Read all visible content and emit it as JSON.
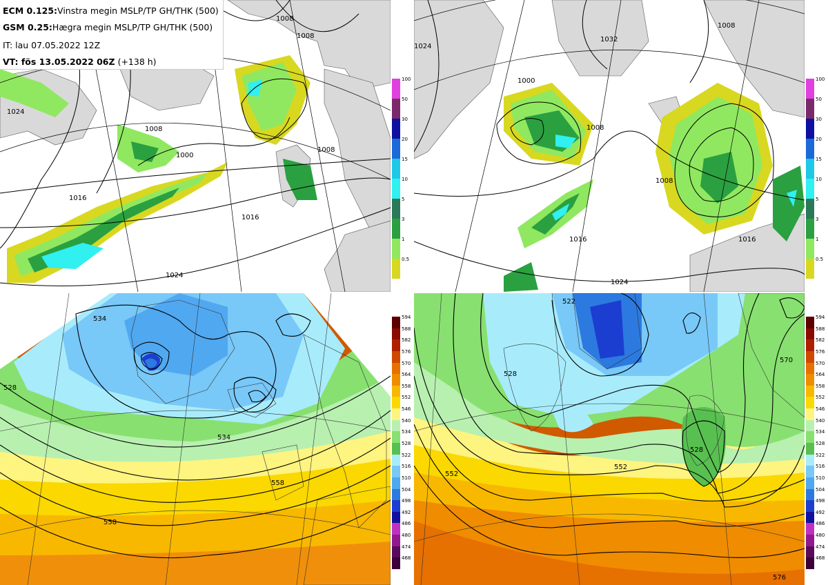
{
  "legend": {
    "ecm_model": "ECM 0.125:",
    "ecm_desc": "Vinstra megin MSLP/TP GH/THK (500)",
    "gsm_model": "GSM 0.25:",
    "gsm_desc": "Hægra megin MSLP/TP GH/THK (500)",
    "it_text": "IT: lau 07.05.2022 12Z",
    "vt_label": "VT: fös 13.05.2022 06Z",
    "vt_lead": "(+138 h)"
  },
  "precip_scale": {
    "labels": [
      "100",
      "50",
      "30",
      "20",
      "15",
      "10",
      "5",
      "3",
      "1",
      "0.5"
    ],
    "colors": [
      "#e040e0",
      "#7a2a6a",
      "#1010a0",
      "#1c6ad8",
      "#20c8e8",
      "#30f0f0",
      "#2a7a5a",
      "#2aa040",
      "#90e860",
      "#d8d820"
    ]
  },
  "thickness_scale": {
    "labels": [
      "594",
      "588",
      "582",
      "576",
      "570",
      "564",
      "558",
      "552",
      "546",
      "540",
      "534",
      "528",
      "522",
      "516",
      "510",
      "504",
      "498",
      "492",
      "486",
      "480",
      "474",
      "468"
    ],
    "colors": [
      "#5a0000",
      "#8a0a00",
      "#b01e00",
      "#d04800",
      "#e67000",
      "#f08c00",
      "#f8b800",
      "#fad800",
      "#fef480",
      "#b8f0b0",
      "#88e070",
      "#58c050",
      "#a8ecfc",
      "#78c8f8",
      "#50a8f0",
      "#2c7ae0",
      "#1c3ed0",
      "#1010a0",
      "#c030c0",
      "#901890",
      "#5a0a5a",
      "#3a003a"
    ]
  },
  "top_left": {
    "isobars": [
      "1024",
      "1016",
      "1016",
      "1008",
      "1000",
      "1008",
      "1008",
      "1008",
      "1024"
    ]
  },
  "top_right": {
    "isobars": [
      "1024",
      "1008",
      "1008",
      "1000",
      "1016",
      "1024",
      "1016",
      "1008",
      "1032"
    ]
  },
  "bottom_left": {
    "contours": [
      "534",
      "558",
      "558",
      "528",
      "534"
    ]
  },
  "bottom_right": {
    "contours": [
      "552",
      "528",
      "552",
      "528",
      "522",
      "570",
      "576"
    ]
  }
}
